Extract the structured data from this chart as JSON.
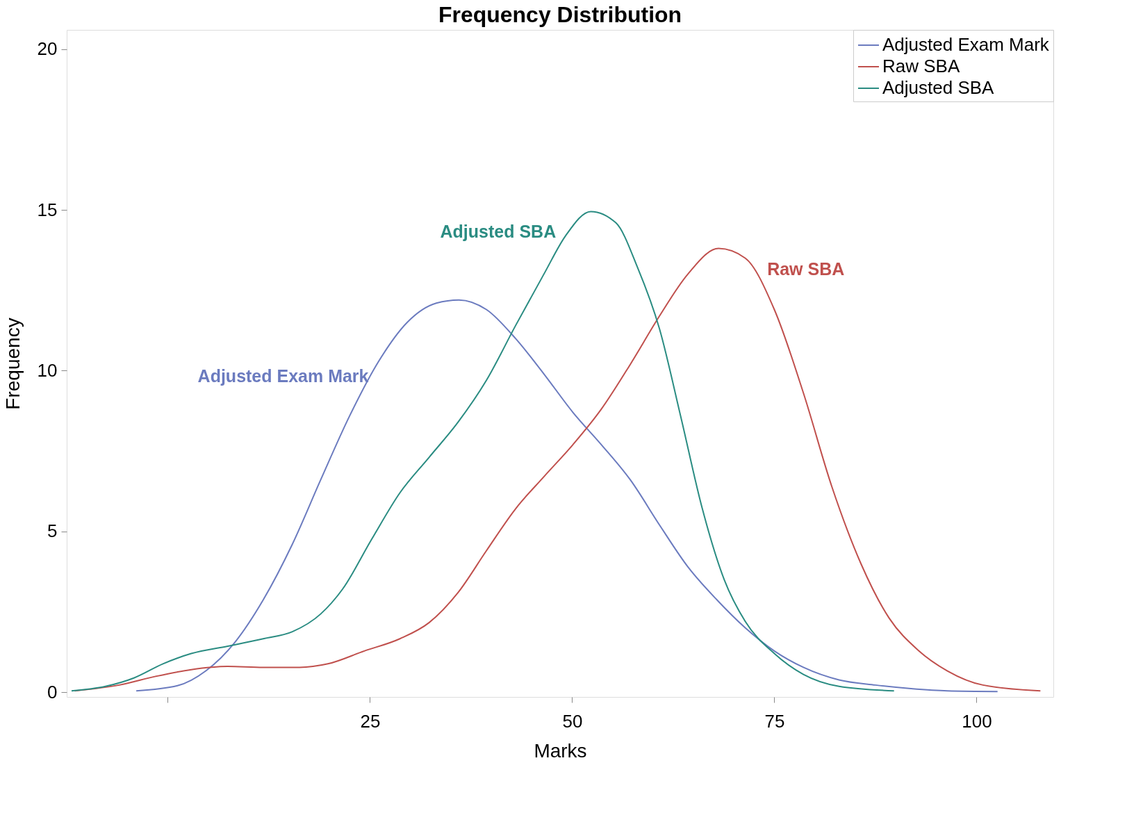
{
  "chart_data": {
    "type": "line",
    "title": "Frequency Distribution",
    "xlabel": "Marks",
    "ylabel": "Frequency",
    "xlim": [
      -12.5,
      109.5
    ],
    "xticks": [
      {
        "value": 0,
        "label": null
      },
      25,
      50,
      75,
      100
    ],
    "ylim": [
      -0.15,
      20.6
    ],
    "yticks": [
      0,
      5,
      10,
      15,
      20
    ],
    "grid": false,
    "legend": "top right",
    "line_style": "solid",
    "marker": "none",
    "series": [
      {
        "name": "Adjusted Exam Mark",
        "color": "#6b7bbf",
        "x": [
          -3.9,
          1.2,
          4.7,
          8.3,
          11.8,
          15.4,
          18.9,
          22.5,
          26.1,
          29.6,
          33.2,
          36.0,
          39.4,
          43.0,
          46.5,
          50.1,
          53.6,
          57.2,
          60.8,
          64.3,
          67.9,
          71.4,
          75.0,
          78.6,
          83.0,
          87.5,
          91.9,
          96.4,
          102.6
        ],
        "values": [
          0.04,
          0.2,
          0.66,
          1.55,
          2.87,
          4.6,
          6.6,
          8.6,
          10.3,
          11.5,
          12.1,
          12.2,
          11.9,
          11.0,
          9.9,
          8.7,
          7.7,
          6.6,
          5.2,
          3.9,
          2.87,
          2.0,
          1.28,
          0.77,
          0.38,
          0.22,
          0.11,
          0.04,
          0.02
        ]
      },
      {
        "name": "Raw SBA",
        "color": "#c0504d",
        "x": [
          -11.5,
          -6.0,
          -1.5,
          2.9,
          7.4,
          11.8,
          16.3,
          19.8,
          24.3,
          28.7,
          32.3,
          35.9,
          39.4,
          43.0,
          46.5,
          50.1,
          53.6,
          57.2,
          60.8,
          64.3,
          68.1,
          71.4,
          75.0,
          78.6,
          82.1,
          85.7,
          89.2,
          92.8,
          96.4,
          100.8,
          107.9
        ],
        "values": [
          0.04,
          0.22,
          0.49,
          0.7,
          0.8,
          0.77,
          0.77,
          0.88,
          1.28,
          1.66,
          2.16,
          3.1,
          4.4,
          5.7,
          6.7,
          7.7,
          8.8,
          10.2,
          11.7,
          13.0,
          13.8,
          13.5,
          11.9,
          9.3,
          6.4,
          4.0,
          2.3,
          1.3,
          0.66,
          0.22,
          0.04
        ]
      },
      {
        "name": "Adjusted SBA",
        "color": "#2a8c82",
        "x": [
          -11.9,
          -7.7,
          -4.2,
          -0.6,
          2.9,
          7.4,
          11.8,
          15.4,
          18.9,
          21.6,
          25.2,
          28.7,
          32.3,
          35.9,
          39.4,
          43.0,
          46.5,
          49.2,
          52.3,
          55.4,
          58.1,
          60.8,
          63.4,
          66.1,
          68.8,
          71.4,
          75.0,
          78.6,
          83.0,
          89.8
        ],
        "values": [
          0.04,
          0.18,
          0.44,
          0.88,
          1.2,
          1.43,
          1.66,
          1.88,
          2.43,
          3.2,
          4.75,
          6.2,
          7.3,
          8.4,
          9.7,
          11.4,
          13.0,
          14.2,
          14.95,
          14.6,
          13.2,
          11.3,
          8.6,
          5.7,
          3.5,
          2.2,
          1.2,
          0.55,
          0.18,
          0.04
        ]
      }
    ],
    "annotations": [
      "Adjusted Exam Mark",
      "Raw SBA",
      "Adjusted SBA"
    ]
  }
}
